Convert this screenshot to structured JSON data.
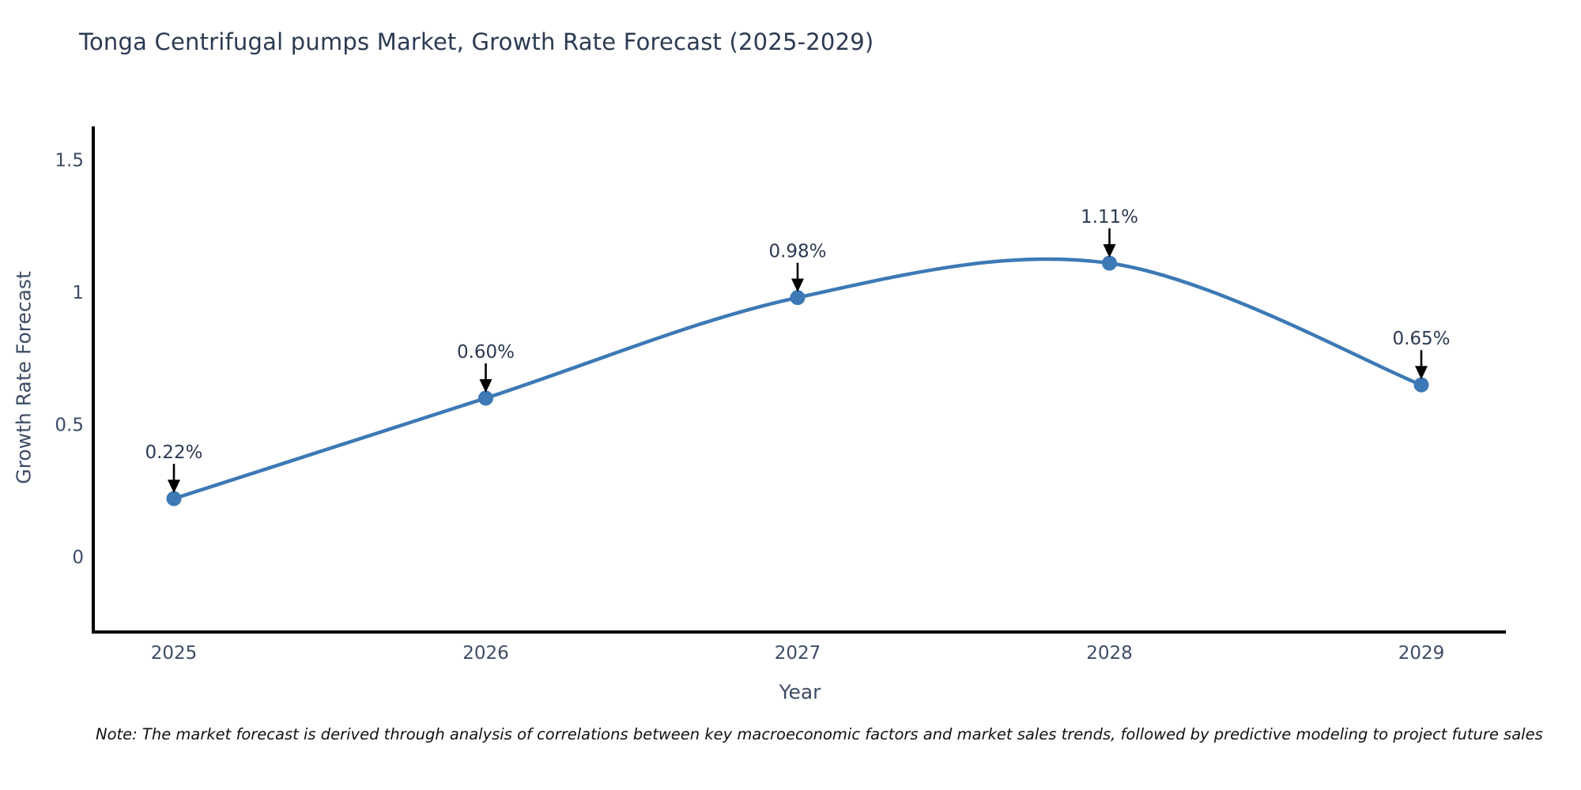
{
  "title": "Tonga Centrifugal pumps Market, Growth Rate Forecast (2025-2029)",
  "note": "Note: The market forecast is derived through analysis of correlations between key macroeconomic factors and market sales trends, followed by predictive modeling to project future sales",
  "chart_data": {
    "type": "line",
    "x": [
      "2025",
      "2026",
      "2027",
      "2028",
      "2029"
    ],
    "series": [
      {
        "name": "Growth Rate Forecast",
        "values": [
          0.22,
          0.6,
          0.98,
          1.11,
          0.65
        ]
      }
    ],
    "point_labels": [
      "0.22%",
      "0.60%",
      "0.98%",
      "1.11%",
      "0.65%"
    ],
    "title": "Tonga Centrifugal pumps Market, Growth Rate Forecast (2025-2029)",
    "xlabel": "Year",
    "ylabel": "Growth Rate Forecast",
    "yticks": [
      0,
      0.5,
      1,
      1.5
    ],
    "ylim": [
      -0.284,
      1.627
    ],
    "grid": false,
    "legend": "none",
    "smooth": true,
    "line_color": "#3c79b5",
    "marker_color": "#3c79b5",
    "arrow_color": "#000000"
  },
  "colors": {
    "title": "#2c3a52",
    "tick_label": "#3e4c66",
    "annotation_text": "#2c3a52",
    "axis_line": "#000000",
    "note_text": "#111111",
    "background": "#ffffff"
  }
}
